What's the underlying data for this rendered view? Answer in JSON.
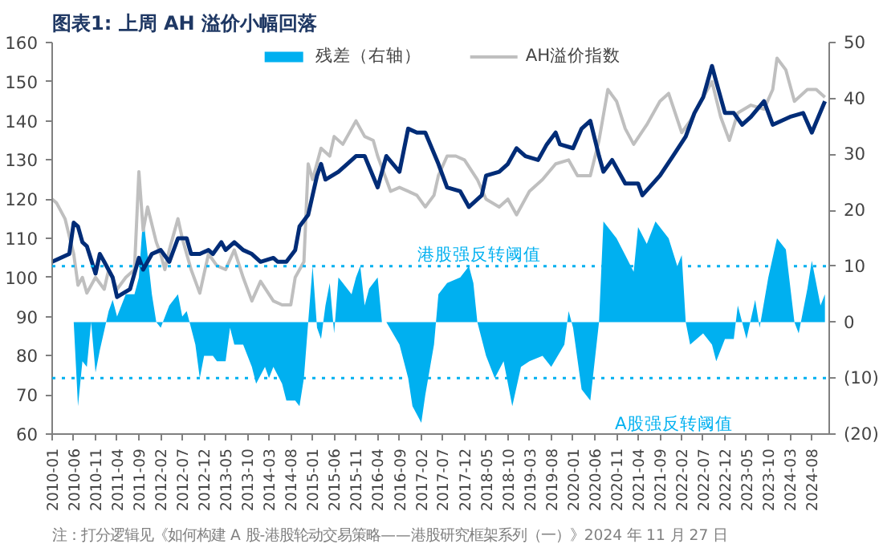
{
  "chart_data": {
    "type": "line",
    "title": "图表1:  上周 AH 溢价小幅回落",
    "annotations": [
      "注：打分逻辑见《如何构建 A 股-港股轮动交易策略——港股研究框架系列（一）》2024 年 11 月 27 日"
    ],
    "xlim": [
      "2010-01",
      "2024-12"
    ],
    "xticks": [
      "2010-01",
      "2010-06",
      "2010-11",
      "2011-04",
      "2011-09",
      "2012-02",
      "2012-07",
      "2012-12",
      "2013-05",
      "2013-10",
      "2014-03",
      "2014-08",
      "2015-01",
      "2015-06",
      "2015-11",
      "2016-04",
      "2016-09",
      "2017-02",
      "2017-07",
      "2017-12",
      "2018-05",
      "2018-10",
      "2019-03",
      "2019-08",
      "2020-01",
      "2020-06",
      "2020-11",
      "2021-04",
      "2021-09",
      "2022-02",
      "2022-07",
      "2022-12",
      "2023-05",
      "2023-10",
      "2024-03",
      "2024-08"
    ],
    "ylim": [
      60,
      160
    ],
    "yticks": [
      60,
      70,
      80,
      90,
      100,
      110,
      120,
      130,
      140,
      150,
      160
    ],
    "y2lim": [
      -20,
      50
    ],
    "y2ticks": [
      {
        "value": -20,
        "label": "(20)"
      },
      {
        "value": -10,
        "label": "(10)"
      },
      0,
      10,
      20,
      30,
      40,
      50
    ],
    "grid": false,
    "legend": "top",
    "ref_lines": [
      {
        "axis": "y2",
        "value": 10,
        "label": "港股强反转阈值",
        "color": "#00b0f0",
        "line_style": "dotted"
      },
      {
        "axis": "y2",
        "value": -10,
        "label": "A股强反转阈值",
        "color": "#00b0f0",
        "line_style": "dotted"
      }
    ],
    "series": [
      {
        "name": "残差（右轴）",
        "type": "area",
        "axis": "y2",
        "color": "#00b0f0",
        "x": [
          "2010-06",
          "2010-07",
          "2010-08",
          "2010-09",
          "2010-10",
          "2010-11",
          "2010-12",
          "2011-02",
          "2011-03",
          "2011-04",
          "2011-06",
          "2011-08",
          "2011-09",
          "2011-10",
          "2011-11",
          "2011-12",
          "2012-01",
          "2012-02",
          "2012-04",
          "2012-06",
          "2012-07",
          "2012-08",
          "2012-10",
          "2012-11",
          "2012-12",
          "2013-02",
          "2013-03",
          "2013-05",
          "2013-06",
          "2013-07",
          "2013-09",
          "2013-11",
          "2013-12",
          "2014-02",
          "2014-03",
          "2014-04",
          "2014-06",
          "2014-07",
          "2014-09",
          "2014-10",
          "2014-11",
          "2014-12",
          "2015-01",
          "2015-02",
          "2015-03",
          "2015-04",
          "2015-05",
          "2015-06",
          "2015-07",
          "2015-08",
          "2015-10",
          "2015-11",
          "2015-12",
          "2016-01",
          "2016-02",
          "2016-04",
          "2016-05",
          "2016-06",
          "2016-09",
          "2016-11",
          "2016-12",
          "2017-02",
          "2017-03",
          "2017-05",
          "2017-06",
          "2017-08",
          "2017-11",
          "2018-01",
          "2018-02",
          "2018-03",
          "2018-05",
          "2018-07",
          "2018-09",
          "2018-11",
          "2019-01",
          "2019-03",
          "2019-06",
          "2019-08",
          "2019-11",
          "2019-12",
          "2020-01",
          "2020-03",
          "2020-05",
          "2020-07",
          "2020-08",
          "2020-11",
          "2021-01",
          "2021-03",
          "2021-04",
          "2021-06",
          "2021-08",
          "2021-11",
          "2022-01",
          "2022-02",
          "2022-03",
          "2022-04",
          "2022-07",
          "2022-09",
          "2022-10",
          "2022-12",
          "2023-02",
          "2023-03",
          "2023-05",
          "2023-07",
          "2023-08",
          "2023-10",
          "2023-12",
          "2024-02",
          "2024-04",
          "2024-05",
          "2024-07",
          "2024-08",
          "2024-10",
          "2024-11"
        ],
        "values": [
          0,
          -15,
          -7,
          -8,
          0,
          -9,
          -5,
          2,
          4,
          1,
          5,
          5,
          8,
          19,
          12,
          5,
          0,
          -1,
          3,
          5,
          1,
          2,
          -4,
          -10,
          -6,
          -6,
          -7,
          -7,
          -1,
          -4,
          -4,
          -8,
          -11,
          -8,
          -10,
          -8,
          -11,
          -14,
          -14,
          -15,
          -10,
          0,
          10,
          -1,
          -3,
          3,
          7,
          -2,
          8,
          7,
          5,
          8,
          10,
          3,
          6,
          8,
          0,
          0,
          -4,
          -10,
          -15,
          -18,
          -13,
          -4,
          5,
          7,
          8,
          10,
          7,
          0,
          -6,
          -10,
          -7,
          -15,
          -8,
          -7,
          -6,
          -8,
          -4,
          2,
          -1,
          -12,
          -14,
          0,
          18,
          15,
          12,
          9,
          17,
          14,
          18,
          15,
          10,
          12,
          0,
          -4,
          -2,
          -4,
          -7,
          -3,
          -3,
          3,
          -3,
          4,
          -1,
          8,
          15,
          13,
          0,
          -2,
          6,
          11,
          3,
          5
        ]
      },
      {
        "name": "AH溢价指数",
        "color": "#bfbfbf",
        "x": [
          "2010-01",
          "2010-02",
          "2010-04",
          "2010-06",
          "2010-07",
          "2010-08",
          "2010-09",
          "2010-11",
          "2011-01",
          "2011-02",
          "2011-04",
          "2011-06",
          "2011-08",
          "2011-09",
          "2011-10",
          "2011-11",
          "2012-01",
          "2012-02",
          "2012-03",
          "2012-04",
          "2012-06",
          "2012-07",
          "2012-09",
          "2012-11",
          "2013-01",
          "2013-03",
          "2013-05",
          "2013-07",
          "2013-09",
          "2013-11",
          "2014-01",
          "2014-04",
          "2014-06",
          "2014-08",
          "2014-09",
          "2014-11",
          "2014-12",
          "2015-01",
          "2015-03",
          "2015-05",
          "2015-06",
          "2015-08",
          "2015-11",
          "2016-01",
          "2016-03",
          "2016-04",
          "2016-07",
          "2016-09",
          "2016-11",
          "2017-01",
          "2017-03",
          "2017-05",
          "2017-06",
          "2017-08",
          "2017-10",
          "2017-12",
          "2018-03",
          "2018-05",
          "2018-08",
          "2018-10",
          "2018-12",
          "2019-03",
          "2019-06",
          "2019-09",
          "2019-12",
          "2020-02",
          "2020-05",
          "2020-07",
          "2020-09",
          "2020-11",
          "2021-01",
          "2021-03",
          "2021-06",
          "2021-09",
          "2021-11",
          "2022-02",
          "2022-04",
          "2022-07",
          "2022-09",
          "2022-11",
          "2023-01",
          "2023-03",
          "2023-06",
          "2023-09",
          "2023-11",
          "2023-12",
          "2024-02",
          "2024-04",
          "2024-07",
          "2024-09",
          "2024-11"
        ],
        "values": [
          120,
          119,
          115,
          106,
          98,
          100,
          96,
          100,
          97,
          102,
          97,
          100,
          102,
          127,
          112,
          118,
          109,
          106,
          102,
          107,
          115,
          110,
          102,
          96,
          106,
          103,
          102,
          107,
          100,
          94,
          99,
          94,
          93,
          93,
          100,
          104,
          129,
          125,
          133,
          131,
          136,
          134,
          140,
          136,
          135,
          131,
          122,
          123,
          122,
          121,
          118,
          121,
          126,
          131,
          131,
          130,
          125,
          120,
          118,
          120,
          116,
          122,
          125,
          129,
          130,
          126,
          126,
          135,
          148,
          145,
          138,
          134,
          139,
          145,
          147,
          137,
          140,
          146,
          150,
          141,
          135,
          142,
          144,
          143,
          148,
          156,
          153,
          145,
          148,
          148,
          146
        ]
      },
      {
        "color": "#002c77",
        "x": [
          "2010-01",
          "2010-05",
          "2010-06",
          "2010-07",
          "2010-08",
          "2010-09",
          "2010-11",
          "2010-12",
          "2011-01",
          "2011-03",
          "2011-04",
          "2011-07",
          "2011-09",
          "2011-10",
          "2011-12",
          "2012-02",
          "2012-04",
          "2012-06",
          "2012-08",
          "2012-09",
          "2012-11",
          "2013-01",
          "2013-02",
          "2013-04",
          "2013-05",
          "2013-07",
          "2013-09",
          "2013-11",
          "2014-01",
          "2014-04",
          "2014-05",
          "2014-07",
          "2014-09",
          "2014-10",
          "2014-12",
          "2015-01",
          "2015-02",
          "2015-03",
          "2015-04",
          "2015-07",
          "2015-09",
          "2015-11",
          "2016-01",
          "2016-04",
          "2016-06",
          "2016-09",
          "2016-11",
          "2017-01",
          "2017-03",
          "2017-06",
          "2017-08",
          "2017-11",
          "2018-01",
          "2018-04",
          "2018-05",
          "2018-08",
          "2018-10",
          "2018-12",
          "2019-02",
          "2019-05",
          "2019-07",
          "2019-09",
          "2019-10",
          "2020-01",
          "2020-03",
          "2020-05",
          "2020-07",
          "2020-08",
          "2020-10",
          "2021-01",
          "2021-04",
          "2021-05",
          "2021-09",
          "2021-12",
          "2022-03",
          "2022-05",
          "2022-07",
          "2022-09",
          "2022-10",
          "2022-12",
          "2023-02",
          "2023-04",
          "2023-06",
          "2023-09",
          "2023-11",
          "2024-03",
          "2024-06",
          "2024-08",
          "2024-11"
        ],
        "values": [
          104,
          106,
          114,
          113,
          109,
          108,
          101,
          106,
          104,
          100,
          95,
          97,
          105,
          102,
          106,
          107,
          104,
          110,
          110,
          106,
          106,
          107,
          106,
          109,
          107,
          109,
          107,
          106,
          104,
          105,
          104,
          104,
          107,
          113,
          116,
          121,
          126,
          129,
          125,
          127,
          129,
          131,
          131,
          123,
          131,
          127,
          138,
          137,
          137,
          129,
          123,
          122,
          118,
          121,
          126,
          127,
          129,
          133,
          131,
          130,
          134,
          137,
          134,
          133,
          138,
          140,
          131,
          127,
          130,
          124,
          124,
          121,
          126,
          131,
          136,
          142,
          146,
          154,
          150,
          142,
          142,
          139,
          141,
          145,
          139,
          141,
          142,
          137,
          145
        ]
      }
    ]
  }
}
